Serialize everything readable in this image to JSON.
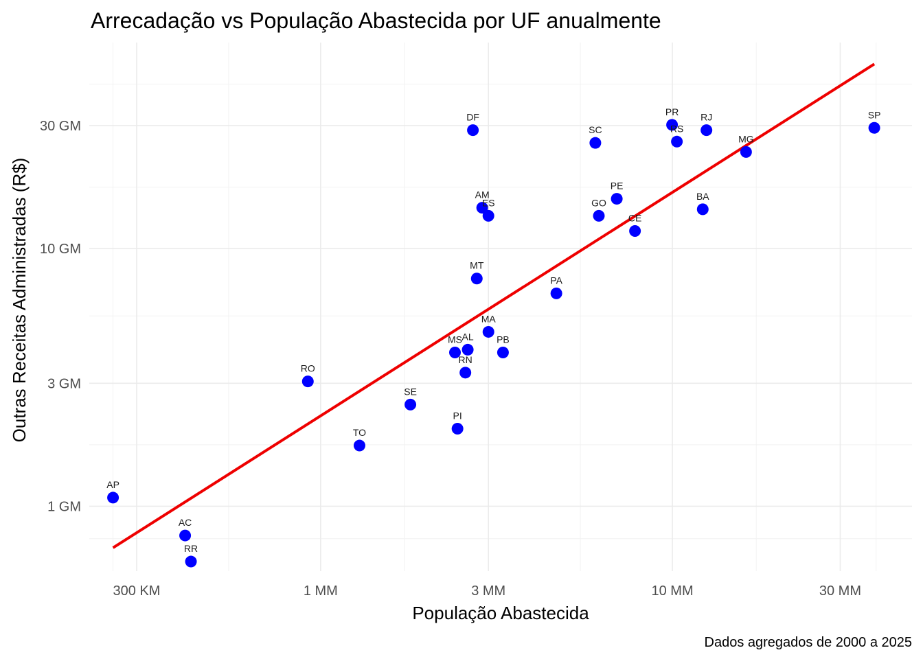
{
  "chart_data": {
    "type": "scatter",
    "title": "Arrecadação vs População Abastecida por UF anualmente",
    "xlabel": "População Abastecida",
    "ylabel": "Outras Receitas Administradas (R$)",
    "caption": "Dados agregados de 2000 a 2025",
    "x_scale": "log",
    "y_scale": "log",
    "xlim": [
      220000,
      48000000
    ],
    "ylim": [
      560000000,
      63000000000
    ],
    "x_ticks": [
      {
        "value": 300000,
        "label": "300 KM"
      },
      {
        "value": 1000000,
        "label": "1 MM"
      },
      {
        "value": 3000000,
        "label": "3 MM"
      },
      {
        "value": 10000000,
        "label": "10 MM"
      },
      {
        "value": 30000000,
        "label": "30 MM"
      }
    ],
    "y_ticks": [
      {
        "value": 1000000000,
        "label": "1 GM"
      },
      {
        "value": 3000000000,
        "label": "3 GM"
      },
      {
        "value": 10000000000,
        "label": "10 GM"
      },
      {
        "value": 30000000000,
        "label": "30 GM"
      }
    ],
    "grid": true,
    "point_color": "#0000ff",
    "trend_color": "#ee0000",
    "trend_line": {
      "x": [
        257000,
        37500000
      ],
      "y": [
        690000000,
        52000000000
      ]
    },
    "points": [
      {
        "label": "AP",
        "x": 257000,
        "y": 1080000000
      },
      {
        "label": "AC",
        "x": 412000,
        "y": 770000000
      },
      {
        "label": "RR",
        "x": 428000,
        "y": 610000000
      },
      {
        "label": "RO",
        "x": 920000,
        "y": 3050000000
      },
      {
        "label": "TO",
        "x": 1290000,
        "y": 1720000000
      },
      {
        "label": "SE",
        "x": 1800000,
        "y": 2480000000
      },
      {
        "label": "PI",
        "x": 2450000,
        "y": 2000000000
      },
      {
        "label": "MS",
        "x": 2410000,
        "y": 3950000000
      },
      {
        "label": "AL",
        "x": 2620000,
        "y": 4050000000
      },
      {
        "label": "RN",
        "x": 2580000,
        "y": 3300000000
      },
      {
        "label": "MA",
        "x": 3000000,
        "y": 4750000000
      },
      {
        "label": "PB",
        "x": 3300000,
        "y": 3950000000
      },
      {
        "label": "MT",
        "x": 2780000,
        "y": 7650000000
      },
      {
        "label": "AM",
        "x": 2880000,
        "y": 14400000000
      },
      {
        "label": "ES",
        "x": 3000000,
        "y": 13400000000
      },
      {
        "label": "DF",
        "x": 2710000,
        "y": 28800000000
      },
      {
        "label": "PA",
        "x": 4680000,
        "y": 6700000000
      },
      {
        "label": "GO",
        "x": 6180000,
        "y": 13400000000
      },
      {
        "label": "PE",
        "x": 6950000,
        "y": 15600000000
      },
      {
        "label": "CE",
        "x": 7830000,
        "y": 11700000000
      },
      {
        "label": "SC",
        "x": 6040000,
        "y": 25700000000
      },
      {
        "label": "PR",
        "x": 9980000,
        "y": 30200000000
      },
      {
        "label": "RS",
        "x": 10300000,
        "y": 26000000000
      },
      {
        "label": "RJ",
        "x": 12500000,
        "y": 28800000000
      },
      {
        "label": "BA",
        "x": 12200000,
        "y": 14200000000
      },
      {
        "label": "MG",
        "x": 16200000,
        "y": 23700000000
      },
      {
        "label": "SP",
        "x": 37500000,
        "y": 29400000000
      }
    ]
  }
}
